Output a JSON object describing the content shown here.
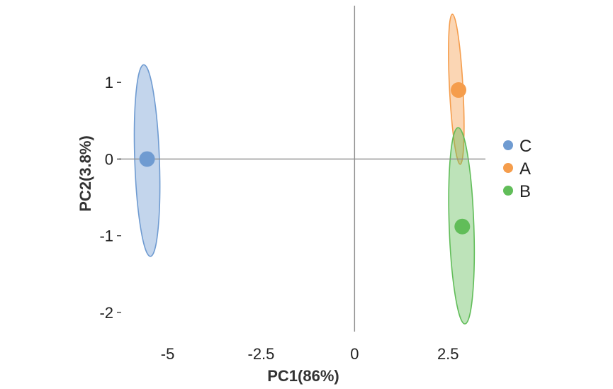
{
  "chart_data": {
    "type": "scatter",
    "title": "",
    "xlabel": "PC1(86%)",
    "ylabel": "PC2(3.8%)",
    "xlim": [
      -6.3,
      3.5
    ],
    "ylim": [
      -2.25,
      2.0
    ],
    "xticks": [
      {
        "value": -5,
        "label": "-5"
      },
      {
        "value": -2.5,
        "label": "-2.5"
      },
      {
        "value": 0,
        "label": "0"
      },
      {
        "value": 2.5,
        "label": "2.5"
      }
    ],
    "yticks": [
      {
        "value": 1,
        "label": "1"
      },
      {
        "value": 0,
        "label": "0"
      },
      {
        "value": -1,
        "label": "-1"
      },
      {
        "value": -2,
        "label": "-2"
      }
    ],
    "grid": false,
    "reference_lines": {
      "x": 0,
      "y": 0
    },
    "legend_position": "right",
    "series": [
      {
        "name": "C",
        "color": "#6f9bd1",
        "point": {
          "x": -5.55,
          "y": 0.0
        },
        "ellipse": {
          "cx": -5.55,
          "cy": -0.02,
          "half_x": 0.33,
          "half_y": 1.25,
          "angle_deg": 2
        }
      },
      {
        "name": "A",
        "color": "#f59d4c",
        "point": {
          "x": 2.78,
          "y": 0.9
        },
        "ellipse": {
          "cx": 2.72,
          "cy": 0.91,
          "half_x": 0.18,
          "half_y": 0.98,
          "angle_deg": 3
        }
      },
      {
        "name": "B",
        "color": "#61bd59",
        "point": {
          "x": 2.88,
          "y": -0.88
        },
        "ellipse": {
          "cx": 2.86,
          "cy": -0.87,
          "half_x": 0.33,
          "half_y": 1.28,
          "angle_deg": 2
        }
      }
    ]
  }
}
